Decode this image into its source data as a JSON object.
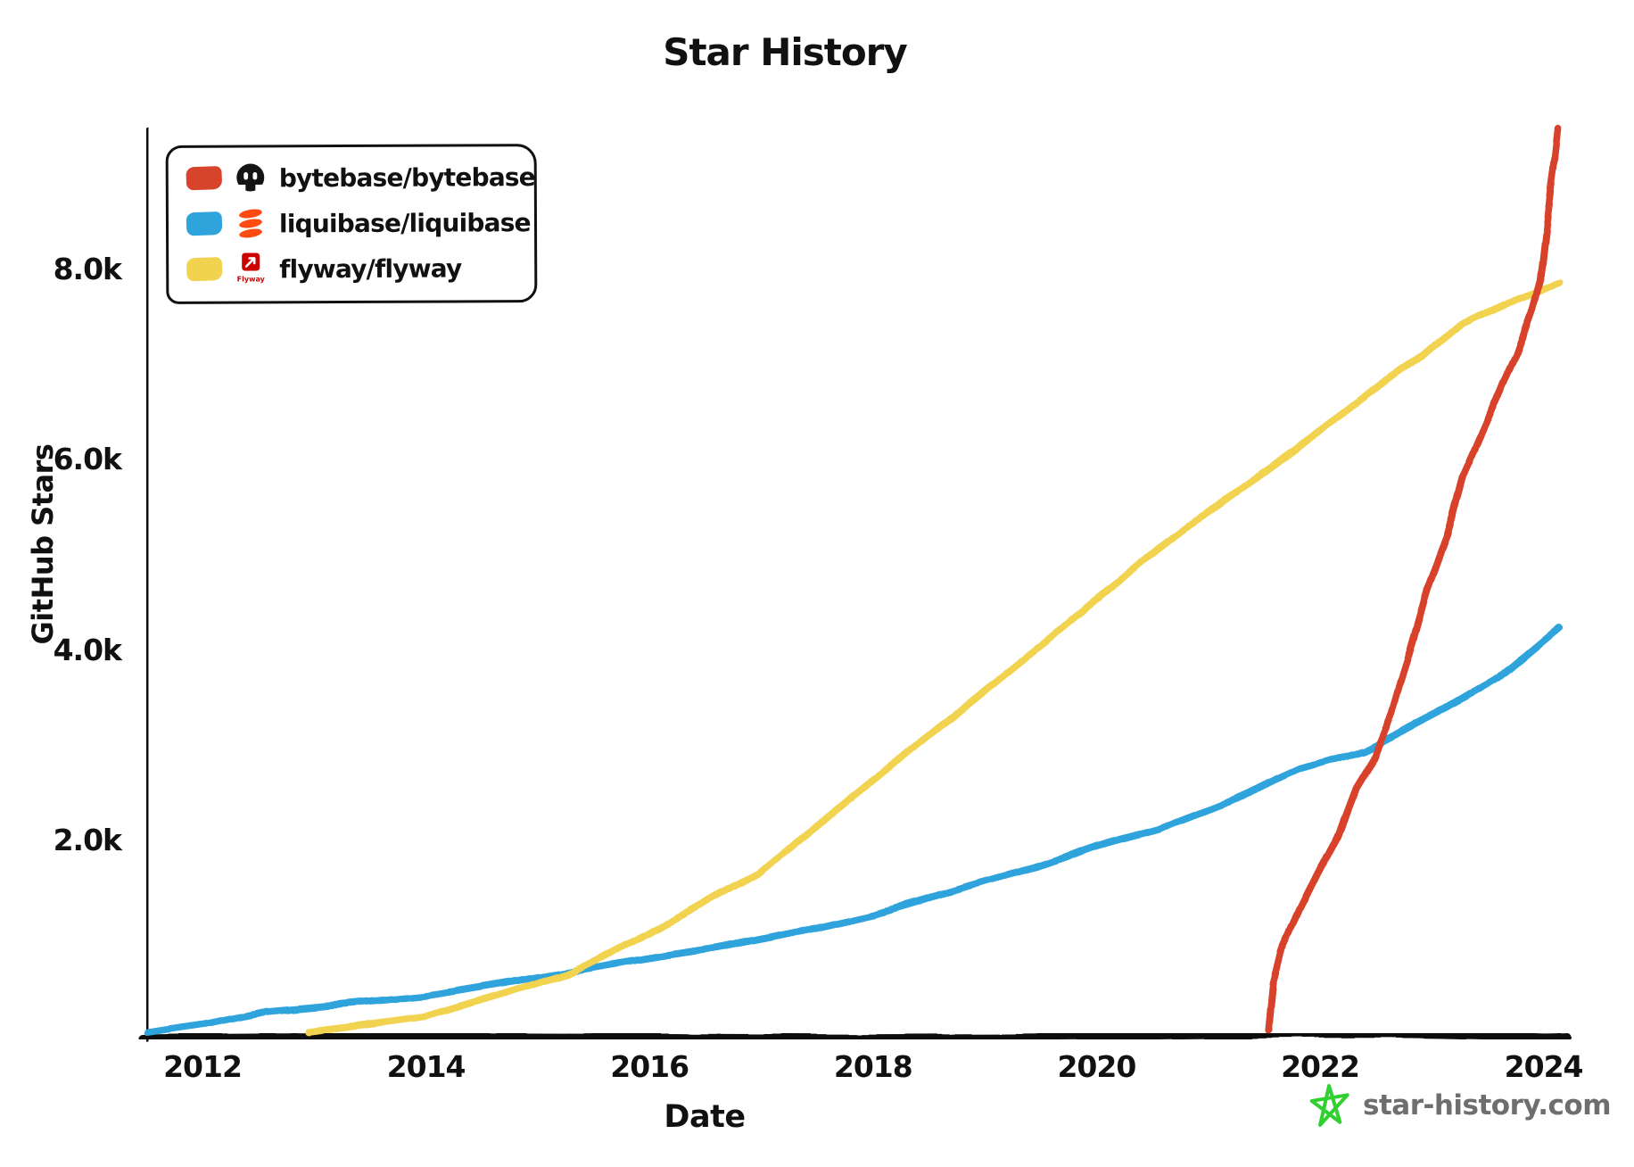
{
  "title": "Star History",
  "axes": {
    "y_label": "GitHub Stars",
    "x_label": "Date",
    "y_ticks": [
      {
        "label": "8.0k",
        "value": 8000
      },
      {
        "label": "6.0k",
        "value": 6000
      },
      {
        "label": "4.0k",
        "value": 4000
      },
      {
        "label": "2.0k",
        "value": 2000
      }
    ],
    "x_ticks": [
      {
        "label": "2012",
        "year": 2012
      },
      {
        "label": "2014",
        "year": 2014
      },
      {
        "label": "2016",
        "year": 2016
      },
      {
        "label": "2018",
        "year": 2018
      },
      {
        "label": "2020",
        "year": 2020
      },
      {
        "label": "2022",
        "year": 2022
      },
      {
        "label": "2024",
        "year": 2024
      }
    ]
  },
  "legend": {
    "items": [
      {
        "label": "bytebase/bytebase",
        "icon": "bytebase-avatar",
        "swatch_color": "#d8432b"
      },
      {
        "label": "liquibase/liquibase",
        "icon": "liquibase-avatar",
        "swatch_color": "#2fa3dc"
      },
      {
        "label": "flyway/flyway",
        "icon": "flyway-avatar",
        "swatch_color": "#f1d34f",
        "icon_text": "Flyway"
      }
    ]
  },
  "watermark": {
    "text": "star-history.com",
    "star_color": "#2ed12e",
    "text_color": "#6e6e6e"
  },
  "colors": {
    "bytebase_line": "#d8432b",
    "liquibase_line": "#2fa3dc",
    "flyway_line": "#f1d34f",
    "axis": "#111111",
    "liquibase_logo_orange": "#ff4a12",
    "flyway_logo_red": "#cc0200",
    "bytebase_logo_black": "#141414"
  },
  "chart_data": {
    "type": "line",
    "title": "Star History",
    "xlabel": "Date",
    "ylabel": "GitHub Stars",
    "x_range": [
      2011.45,
      2024.2
    ],
    "y_range": [
      0,
      9700
    ],
    "grid": false,
    "legend_position": "top-left",
    "y_unit": "stars",
    "series": [
      {
        "key": "bytebase",
        "name": "bytebase/bytebase",
        "color": "#d8432b",
        "points": [
          [
            2021.54,
            30
          ],
          [
            2021.58,
            510
          ],
          [
            2021.66,
            890
          ],
          [
            2021.82,
            1290
          ],
          [
            2021.98,
            1670
          ],
          [
            2022.16,
            2070
          ],
          [
            2022.32,
            2570
          ],
          [
            2022.48,
            2880
          ],
          [
            2022.64,
            3350
          ],
          [
            2022.96,
            4660
          ],
          [
            2023.14,
            5220
          ],
          [
            2023.28,
            5850
          ],
          [
            2023.52,
            6490
          ],
          [
            2023.76,
            7140
          ],
          [
            2023.9,
            7610
          ],
          [
            2023.97,
            7910
          ],
          [
            2024.04,
            8600
          ],
          [
            2024.09,
            9060
          ],
          [
            2024.13,
            9510
          ]
        ]
      },
      {
        "key": "liquibase",
        "name": "liquibase/liquibase",
        "color": "#2fa3dc",
        "points": [
          [
            2011.51,
            10
          ],
          [
            2012.02,
            100
          ],
          [
            2012.58,
            230
          ],
          [
            2013.22,
            300
          ],
          [
            2013.98,
            390
          ],
          [
            2014.7,
            530
          ],
          [
            2015.3,
            650
          ],
          [
            2016.01,
            790
          ],
          [
            2016.61,
            900
          ],
          [
            2017.41,
            1090
          ],
          [
            2018.01,
            1250
          ],
          [
            2018.69,
            1490
          ],
          [
            2019.45,
            1740
          ],
          [
            2020.01,
            1970
          ],
          [
            2020.56,
            2140
          ],
          [
            2021.24,
            2450
          ],
          [
            2021.84,
            2770
          ],
          [
            2022.4,
            2960
          ],
          [
            2023.12,
            3400
          ],
          [
            2023.6,
            3730
          ],
          [
            2024.14,
            4260
          ]
        ]
      },
      {
        "key": "flyway",
        "name": "flyway/flyway",
        "color": "#f1d34f",
        "points": [
          [
            2012.96,
            10
          ],
          [
            2013.98,
            170
          ],
          [
            2014.78,
            450
          ],
          [
            2015.3,
            640
          ],
          [
            2016.01,
            1060
          ],
          [
            2016.97,
            1670
          ],
          [
            2018.01,
            2660
          ],
          [
            2018.77,
            3380
          ],
          [
            2019.61,
            4180
          ],
          [
            2020.54,
            5070
          ],
          [
            2021.28,
            5710
          ],
          [
            2022.0,
            6330
          ],
          [
            2022.64,
            6890
          ],
          [
            2023.28,
            7440
          ],
          [
            2023.76,
            7710
          ],
          [
            2024.14,
            7870
          ]
        ]
      }
    ]
  }
}
